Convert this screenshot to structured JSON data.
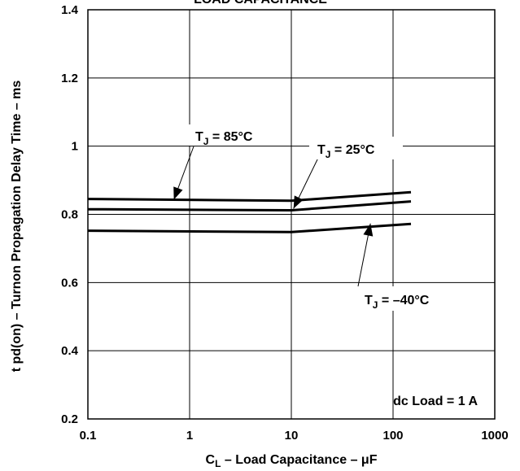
{
  "chart_data": {
    "type": "line",
    "title": "LOAD CAPACITANCE",
    "xlabel": "C",
    "xlabel_sub": "L",
    "xlabel_rest": " – Load Capacitance – μF",
    "ylabel": "t pd(on) – Turnon Propagation Delay Time – ms",
    "xscale": "log",
    "xlim": [
      0.1,
      1000
    ],
    "ylim": [
      0.2,
      1.4
    ],
    "xticks": [
      "0.1",
      "1",
      "10",
      "100",
      "1000"
    ],
    "yticks": [
      "0.2",
      "0.4",
      "0.6",
      "0.8",
      "1",
      "1.2",
      "1.4"
    ],
    "grid": true,
    "series": [
      {
        "name": "TJ = 85°C",
        "x": [
          0.1,
          10,
          150
        ],
        "y": [
          0.845,
          0.84,
          0.865
        ]
      },
      {
        "name": "TJ = 25°C",
        "x": [
          0.1,
          10,
          150
        ],
        "y": [
          0.815,
          0.812,
          0.838
        ]
      },
      {
        "name": "TJ = –40°C",
        "x": [
          0.1,
          10,
          150
        ],
        "y": [
          0.752,
          0.748,
          0.772
        ]
      }
    ],
    "annotations": [
      {
        "pre": "T",
        "sub": "J",
        "post": " = 85°C"
      },
      {
        "pre": "T",
        "sub": "J",
        "post": " = 25°C"
      },
      {
        "pre": "T",
        "sub": "J",
        "post": " = –40°C"
      },
      {
        "text": "dc Load = 1 A"
      }
    ]
  }
}
